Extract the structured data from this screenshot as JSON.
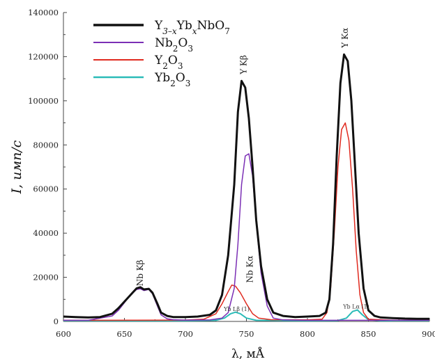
{
  "chart_data": {
    "type": "line",
    "xlabel": "λ, мÅ",
    "ylabel": "I, имп/с",
    "xlim": [
      600,
      900
    ],
    "ylim": [
      0,
      140000
    ],
    "xticks": [
      "600",
      "650",
      "700",
      "750",
      "800",
      "850",
      "900"
    ],
    "yticks": [
      "0",
      "20000",
      "40000",
      "60000",
      "80000",
      "100000",
      "120000",
      "140000"
    ],
    "grid": false,
    "legend_position": "top-left",
    "series": [
      {
        "name": "Y3–xYbxNbO7",
        "legend": {
          "base": "Y",
          "sub1": "3–x",
          "mid": "Yb",
          "sub2": "x",
          "tail": "NbO",
          "sub3": "7"
        },
        "color": "#111111",
        "width": 3,
        "points": [
          [
            600,
            2200
          ],
          [
            610,
            2000
          ],
          [
            620,
            1800
          ],
          [
            630,
            2000
          ],
          [
            640,
            3500
          ],
          [
            645,
            6000
          ],
          [
            650,
            9000
          ],
          [
            655,
            12000
          ],
          [
            660,
            15000
          ],
          [
            663,
            15500
          ],
          [
            666,
            14500
          ],
          [
            670,
            14800
          ],
          [
            673,
            13000
          ],
          [
            677,
            8000
          ],
          [
            680,
            4000
          ],
          [
            685,
            2500
          ],
          [
            690,
            2000
          ],
          [
            700,
            2000
          ],
          [
            710,
            2200
          ],
          [
            720,
            3000
          ],
          [
            725,
            5000
          ],
          [
            730,
            12000
          ],
          [
            735,
            30000
          ],
          [
            740,
            62000
          ],
          [
            743,
            95000
          ],
          [
            746,
            109000
          ],
          [
            749,
            106000
          ],
          [
            752,
            92000
          ],
          [
            755,
            70000
          ],
          [
            758,
            46000
          ],
          [
            762,
            25000
          ],
          [
            767,
            10000
          ],
          [
            772,
            4000
          ],
          [
            780,
            2500
          ],
          [
            790,
            2000
          ],
          [
            800,
            2200
          ],
          [
            810,
            2500
          ],
          [
            815,
            4000
          ],
          [
            818,
            10000
          ],
          [
            821,
            35000
          ],
          [
            824,
            75000
          ],
          [
            827,
            108000
          ],
          [
            830,
            121000
          ],
          [
            833,
            118000
          ],
          [
            836,
            100000
          ],
          [
            839,
            70000
          ],
          [
            842,
            40000
          ],
          [
            846,
            15000
          ],
          [
            850,
            5000
          ],
          [
            855,
            2500
          ],
          [
            860,
            1800
          ],
          [
            870,
            1500
          ],
          [
            880,
            1300
          ],
          [
            890,
            1200
          ],
          [
            900,
            1200
          ]
        ]
      },
      {
        "name": "Nb2O3",
        "legend": {
          "base": "Nb",
          "sub1": "2",
          "mid": "O",
          "sub2": "3"
        },
        "color": "#7b2fb5",
        "width": 1.5,
        "points": [
          [
            600,
            500
          ],
          [
            620,
            500
          ],
          [
            640,
            2500
          ],
          [
            645,
            5000
          ],
          [
            650,
            8500
          ],
          [
            655,
            12000
          ],
          [
            660,
            14500
          ],
          [
            663,
            14800
          ],
          [
            666,
            14000
          ],
          [
            670,
            14500
          ],
          [
            673,
            12500
          ],
          [
            677,
            7000
          ],
          [
            680,
            3000
          ],
          [
            685,
            1200
          ],
          [
            690,
            800
          ],
          [
            700,
            600
          ],
          [
            720,
            700
          ],
          [
            730,
            1500
          ],
          [
            735,
            4000
          ],
          [
            740,
            15000
          ],
          [
            743,
            35000
          ],
          [
            746,
            62000
          ],
          [
            749,
            75000
          ],
          [
            752,
            76000
          ],
          [
            755,
            66000
          ],
          [
            758,
            45000
          ],
          [
            762,
            22000
          ],
          [
            767,
            7000
          ],
          [
            772,
            1500
          ],
          [
            780,
            700
          ],
          [
            800,
            500
          ],
          [
            900,
            500
          ]
        ]
      },
      {
        "name": "Y2O3",
        "legend": {
          "base": "Y",
          "sub1": "2",
          "mid": "O",
          "sub2": "3"
        },
        "color": "#e02a1f",
        "width": 1.5,
        "points": [
          [
            600,
            500
          ],
          [
            700,
            600
          ],
          [
            715,
            1000
          ],
          [
            725,
            3500
          ],
          [
            730,
            8000
          ],
          [
            735,
            13500
          ],
          [
            738,
            16500
          ],
          [
            741,
            16000
          ],
          [
            745,
            13000
          ],
          [
            750,
            8000
          ],
          [
            755,
            3500
          ],
          [
            760,
            1500
          ],
          [
            770,
            800
          ],
          [
            800,
            700
          ],
          [
            812,
            1000
          ],
          [
            816,
            4000
          ],
          [
            819,
            15000
          ],
          [
            822,
            40000
          ],
          [
            825,
            70000
          ],
          [
            828,
            87000
          ],
          [
            831,
            90000
          ],
          [
            834,
            82000
          ],
          [
            837,
            60000
          ],
          [
            840,
            32000
          ],
          [
            843,
            12000
          ],
          [
            846,
            4000
          ],
          [
            850,
            1000
          ],
          [
            870,
            500
          ],
          [
            900,
            500
          ]
        ]
      },
      {
        "name": "Yb2O3",
        "legend": {
          "base": "Yb",
          "sub1": "2",
          "mid": "O",
          "sub2": "3"
        },
        "color": "#2bbcb8",
        "width": 2,
        "points": [
          [
            600,
            300
          ],
          [
            700,
            300
          ],
          [
            725,
            500
          ],
          [
            732,
            1500
          ],
          [
            737,
            3500
          ],
          [
            741,
            4200
          ],
          [
            745,
            3500
          ],
          [
            750,
            1500
          ],
          [
            758,
            500
          ],
          [
            800,
            300
          ],
          [
            825,
            400
          ],
          [
            832,
            1500
          ],
          [
            837,
            4500
          ],
          [
            841,
            5200
          ],
          [
            845,
            3000
          ],
          [
            850,
            800
          ],
          [
            860,
            300
          ],
          [
            900,
            300
          ]
        ]
      }
    ],
    "annotations": [
      {
        "text": "Nb Kβ",
        "x": 665,
        "y": 16000,
        "rotate": -90,
        "size": "normal"
      },
      {
        "text": "Y Kβ",
        "x": 750,
        "y": 112000,
        "rotate": -90,
        "size": "normal"
      },
      {
        "text": "Nb Kα",
        "x": 755,
        "y": 17500,
        "rotate": -90,
        "size": "normal"
      },
      {
        "text": "Y Kα",
        "x": 833,
        "y": 124000,
        "rotate": -90,
        "size": "normal"
      },
      {
        "text": "Yb Lβ (1)",
        "x": 742,
        "y": 4700,
        "rotate": 0,
        "size": "small"
      },
      {
        "text": "Yb Lα (1)",
        "x": 840,
        "y": 5800,
        "rotate": 0,
        "size": "small"
      }
    ]
  }
}
